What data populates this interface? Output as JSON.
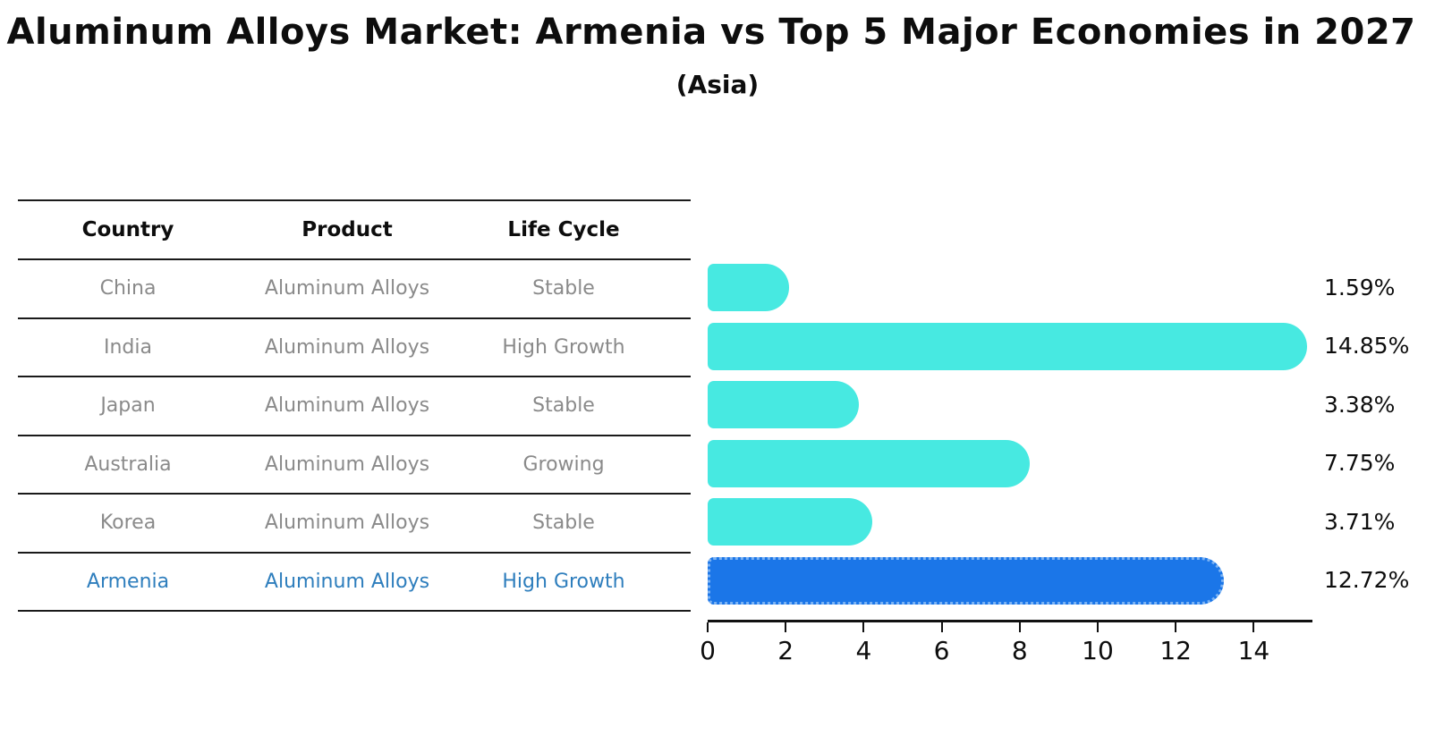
{
  "title": "Aluminum Alloys Market: Armenia vs Top 5 Major Economies in 2027",
  "subtitle": "(Asia)",
  "colors": {
    "row_text": "#8a8a8a",
    "highlight_text": "#2e7ebd",
    "table_line": "#1a1a1a",
    "axis_color": "#111111"
  },
  "table": {
    "headers": [
      "Country",
      "Product",
      "Life Cycle"
    ],
    "rows": [
      {
        "country": "China",
        "product": "Aluminum Alloys",
        "life_cycle": "Stable",
        "highlight": false
      },
      {
        "country": "India",
        "product": "Aluminum Alloys",
        "life_cycle": "High Growth",
        "highlight": false
      },
      {
        "country": "Japan",
        "product": "Aluminum Alloys",
        "life_cycle": "Stable",
        "highlight": false
      },
      {
        "country": "Australia",
        "product": "Aluminum Alloys",
        "life_cycle": "Growing",
        "highlight": false
      },
      {
        "country": "Korea",
        "product": "Aluminum Alloys",
        "life_cycle": "Stable",
        "highlight": false
      },
      {
        "country": "Armenia",
        "product": "Aluminum Alloys",
        "life_cycle": "High Growth",
        "highlight": true
      }
    ]
  },
  "chart_data": {
    "type": "bar",
    "orientation": "horizontal",
    "title": "Aluminum Alloys Market: Armenia vs Top 5 Major Economies in 2027",
    "subtitle": "(Asia)",
    "categories": [
      "China",
      "India",
      "Japan",
      "Australia",
      "Korea",
      "Armenia"
    ],
    "values": [
      1.59,
      14.85,
      3.38,
      7.75,
      3.71,
      12.72
    ],
    "labels": [
      "1.59%",
      "14.85%",
      "3.38%",
      "7.75%",
      "3.71%",
      "12.72%"
    ],
    "x_ticks": [
      0,
      2,
      4,
      6,
      8,
      10,
      12,
      14
    ],
    "xlim": [
      0,
      15.5
    ],
    "xlabel": "",
    "ylabel": "",
    "grid": false,
    "legend": false,
    "bar_color": "#47e9e1",
    "highlight_color": "#1b76e8",
    "highlight_border_color": "#7cb3f3",
    "highlight_index": 5,
    "highlight_style": "dotted-border"
  }
}
